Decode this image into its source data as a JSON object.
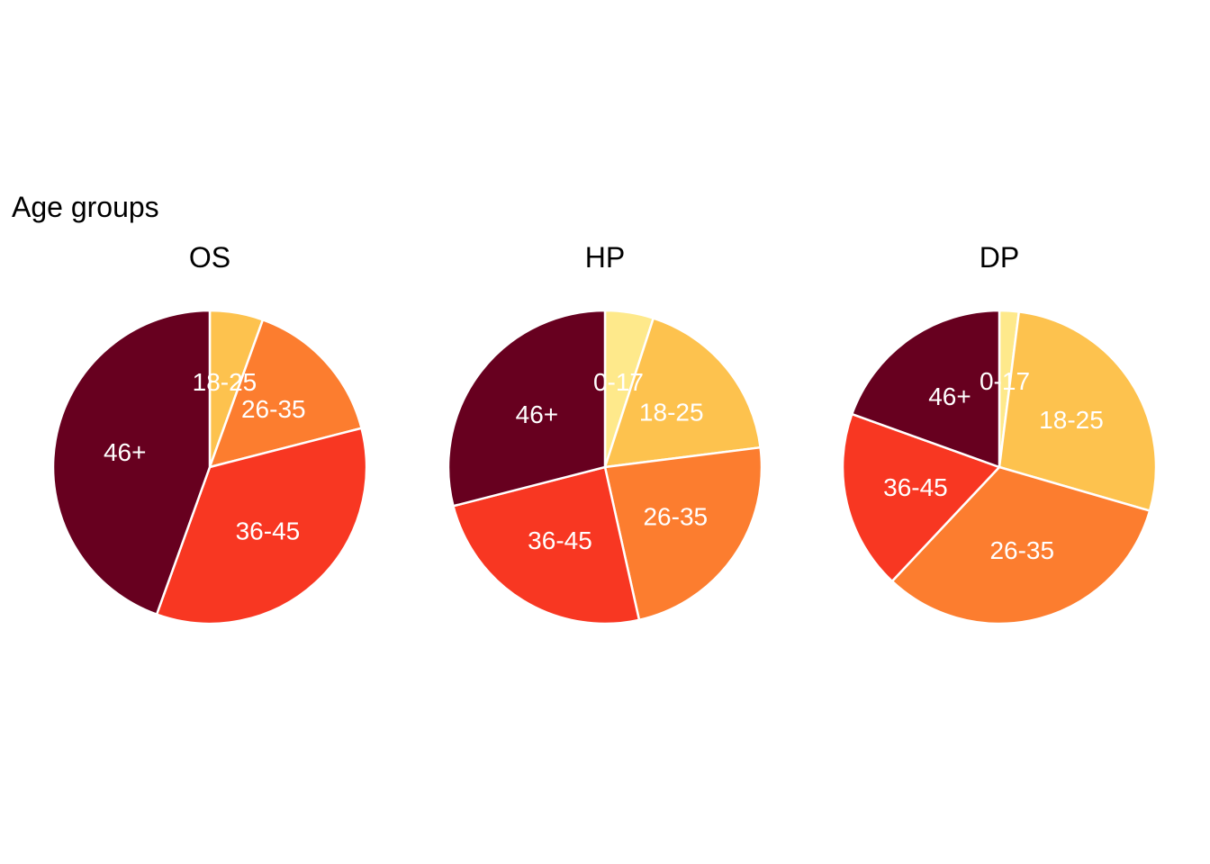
{
  "title": "Age groups",
  "colors": {
    "0-17": "#FEE98B",
    "18-25": "#FDC24E",
    "26-35": "#FC7D2F",
    "36-45": "#F83722",
    "46+": "#67001F",
    "slice_border": "#FFFFFF"
  },
  "chart_data": [
    {
      "type": "pie",
      "title": "OS",
      "slices": [
        {
          "label": "0-17",
          "value": 0.0
        },
        {
          "label": "18-25",
          "value": 5.5
        },
        {
          "label": "26-35",
          "value": 15.5
        },
        {
          "label": "36-45",
          "value": 34.5
        },
        {
          "label": "46+",
          "value": 44.5
        }
      ]
    },
    {
      "type": "pie",
      "title": "HP",
      "slices": [
        {
          "label": "0-17",
          "value": 5.0
        },
        {
          "label": "18-25",
          "value": 18.0
        },
        {
          "label": "26-35",
          "value": 23.5
        },
        {
          "label": "36-45",
          "value": 24.5
        },
        {
          "label": "46+",
          "value": 29.0
        }
      ]
    },
    {
      "type": "pie",
      "title": "DP",
      "slices": [
        {
          "label": "0-17",
          "value": 2.0
        },
        {
          "label": "18-25",
          "value": 27.5
        },
        {
          "label": "26-35",
          "value": 32.5
        },
        {
          "label": "36-45",
          "value": 18.5
        },
        {
          "label": "46+",
          "value": 19.5
        }
      ]
    }
  ]
}
